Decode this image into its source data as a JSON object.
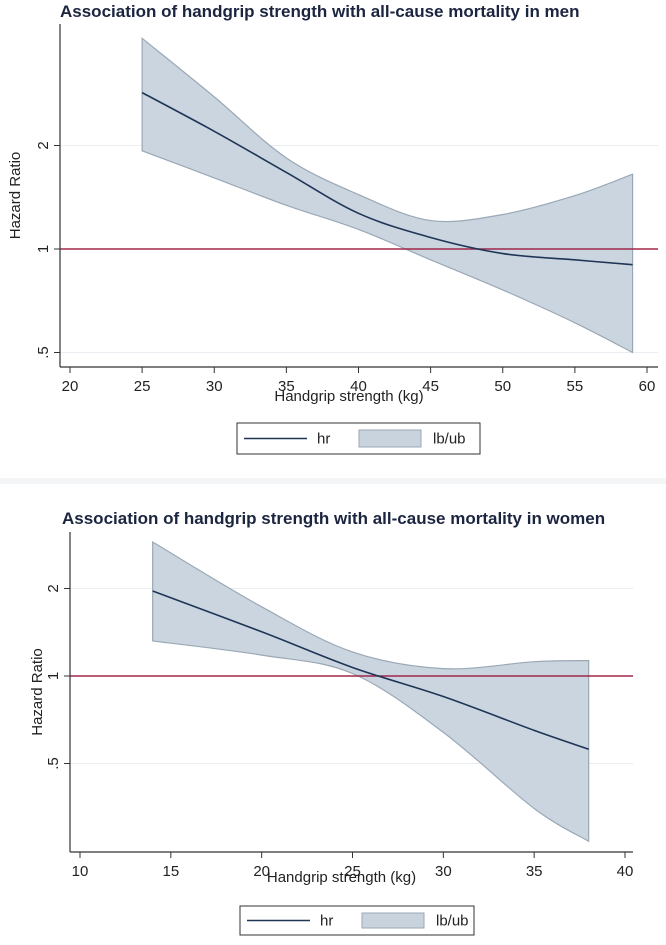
{
  "chart_data": [
    {
      "type": "line",
      "title": "Association of handgrip strength with all-cause mortality in men",
      "xlabel": "Handgrip strength (kg)",
      "ylabel": "Hazard Ratio",
      "xlim": [
        20,
        60
      ],
      "xticks": [
        20,
        25,
        30,
        35,
        40,
        45,
        50,
        55,
        60
      ],
      "yscale": "log",
      "yticks": [
        {
          "value": 0.5,
          "label": ".5"
        },
        {
          "value": 1,
          "label": "1"
        },
        {
          "value": 2,
          "label": "2"
        }
      ],
      "reference_line": {
        "y": 1,
        "color": "#a0284a"
      },
      "x": [
        25,
        30,
        35,
        40,
        45,
        50,
        55,
        59
      ],
      "series": [
        {
          "name": "hr",
          "kind": "line",
          "values": [
            2.85,
            2.2,
            1.67,
            1.27,
            1.08,
            0.97,
            0.93,
            0.9
          ],
          "color": "#1f3556"
        },
        {
          "name": "lb/ub",
          "kind": "band",
          "lower": [
            1.93,
            1.61,
            1.34,
            1.14,
            0.93,
            0.76,
            0.61,
            0.5
          ],
          "upper": [
            4.1,
            2.77,
            1.84,
            1.44,
            1.21,
            1.26,
            1.43,
            1.65
          ],
          "color": "#c8d3de"
        }
      ],
      "grid": true,
      "legend": {
        "position": "bottom",
        "entries": [
          "hr",
          "lb/ub"
        ]
      }
    },
    {
      "type": "line",
      "title": "Association of handgrip strength with all-cause mortality in women",
      "xlabel": "Handgrip strength (kg)",
      "ylabel": "Hazard Ratio",
      "xlim": [
        10,
        40
      ],
      "xticks": [
        10,
        15,
        20,
        25,
        30,
        35,
        40
      ],
      "yscale": "log",
      "yticks": [
        {
          "value": 0.5,
          "label": ".5"
        },
        {
          "value": 1,
          "label": "1"
        },
        {
          "value": 2,
          "label": "2"
        }
      ],
      "reference_line": {
        "y": 1,
        "color": "#a0284a"
      },
      "x": [
        14,
        20,
        25,
        30,
        35,
        38
      ],
      "series": [
        {
          "name": "hr",
          "kind": "line",
          "values": [
            1.96,
            1.42,
            1.07,
            0.85,
            0.65,
            0.56
          ],
          "color": "#1f3556"
        },
        {
          "name": "lb/ub",
          "kind": "band",
          "lower": [
            1.32,
            1.18,
            1.02,
            0.64,
            0.35,
            0.27
          ],
          "upper": [
            2.89,
            1.73,
            1.21,
            1.06,
            1.12,
            1.13
          ],
          "color": "#c8d3de"
        }
      ],
      "grid": true,
      "legend": {
        "position": "bottom",
        "entries": [
          "hr",
          "lb/ub"
        ]
      }
    }
  ]
}
